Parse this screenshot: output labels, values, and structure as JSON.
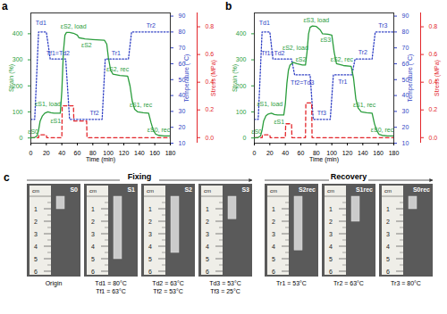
{
  "chart_data": [
    {
      "type": "line",
      "title": "a",
      "xlabel": "Time (min)",
      "ylabel": "Strain (%)",
      "y2label": "Temperature (°C)",
      "y3label": "Stress (MPa)",
      "xlim": [
        0,
        180
      ],
      "xticks": [
        0,
        20,
        40,
        60,
        80,
        100,
        120,
        140,
        160,
        180
      ],
      "ylim": [
        -20,
        480
      ],
      "yticks": [
        0,
        100,
        200,
        300,
        400
      ],
      "y2lim": [
        10,
        92
      ],
      "y2ticks": [
        10,
        20,
        30,
        40,
        50,
        60,
        70,
        80,
        90
      ],
      "y3lim": [
        -0.04,
        0.9
      ],
      "y3ticks": [
        {
          "value": 0,
          "label": "0.0"
        },
        {
          "value": 0.2,
          "label": "0.2"
        },
        {
          "value": 0.4,
          "label": "0.4"
        },
        {
          "value": 0.6,
          "label": "0.6"
        },
        {
          "value": 0.8,
          "label": "0.8"
        }
      ],
      "series": [
        {
          "color": "#2a9d3c",
          "line_style": "solid",
          "x": [
            0,
            5,
            8,
            10,
            12,
            15,
            18,
            22,
            26,
            30,
            38,
            40,
            42,
            44,
            46,
            50,
            55,
            60,
            62,
            70,
            80,
            90,
            95,
            98,
            100,
            103,
            106,
            115,
            125,
            128,
            131,
            134,
            138,
            145,
            152,
            155,
            158,
            161,
            165,
            172,
            180
          ],
          "values": [
            0,
            2,
            8,
            30,
            65,
            85,
            95,
            100,
            97,
            95,
            95,
            180,
            330,
            395,
            405,
            405,
            402,
            395,
            385,
            380,
            378,
            376,
            375,
            360,
            310,
            260,
            245,
            240,
            237,
            200,
            140,
            110,
            100,
            97,
            95,
            60,
            30,
            15,
            10,
            8,
            8
          ]
        },
        {
          "color": "#2f3fc4",
          "line_style": "dotted",
          "axis": "y2",
          "x": [
            0,
            5,
            10,
            20,
            25,
            45,
            50,
            92,
            96,
            126,
            130,
            180
          ],
          "values": [
            25,
            25,
            80,
            80,
            63,
            63,
            25,
            25,
            63,
            63,
            80,
            80
          ]
        },
        {
          "color": "#e3262b",
          "line_style": "dashed",
          "axis": "y3",
          "x": [
            0,
            10,
            10.5,
            20,
            20.5,
            40,
            40.5,
            55,
            55.5,
            72,
            72.5,
            180
          ],
          "values": [
            0,
            0,
            0.02,
            0.02,
            0,
            0,
            0.23,
            0.23,
            0.12,
            0.12,
            0,
            0
          ]
        }
      ],
      "annotations": [
        {
          "text": "εS0",
          "x": 3,
          "y": 25,
          "color": "#2a9d3c"
        },
        {
          "text": "Td1",
          "x": 13,
          "y": 440,
          "color": "#2f3fc4"
        },
        {
          "text": "Tf1=Td2",
          "x": 35,
          "y": 325,
          "color": "#2f3fc4"
        },
        {
          "text": "εS1, load",
          "x": 22,
          "y": 130,
          "color": "#2a9d3c"
        },
        {
          "text": "εS1",
          "x": 32,
          "y": 65,
          "color": "#2a9d3c"
        },
        {
          "text": "εS2, load",
          "x": 55,
          "y": 428,
          "color": "#2a9d3c"
        },
        {
          "text": "εS2",
          "x": 72,
          "y": 355,
          "color": "#2a9d3c"
        },
        {
          "text": "Tf2",
          "x": 82,
          "y": 95,
          "color": "#2f3fc4"
        },
        {
          "text": "Tr1",
          "x": 110,
          "y": 325,
          "color": "#2f3fc4"
        },
        {
          "text": "εS2, rec",
          "x": 112,
          "y": 262,
          "color": "#2a9d3c"
        },
        {
          "text": "Tr2",
          "x": 155,
          "y": 430,
          "color": "#2f3fc4"
        },
        {
          "text": "εS1, rec",
          "x": 142,
          "y": 125,
          "color": "#2a9d3c"
        },
        {
          "text": "εS0, rec",
          "x": 165,
          "y": 30,
          "color": "#2a9d3c"
        }
      ]
    },
    {
      "type": "line",
      "title": "b",
      "xlabel": "Time (min)",
      "ylabel": "Strain (%)",
      "y2label": "Temperature (°C)",
      "y3label": "Stress (MPa)",
      "xlim": [
        0,
        180
      ],
      "xticks": [
        0,
        20,
        40,
        60,
        80,
        100,
        120,
        140,
        160,
        180
      ],
      "ylim": [
        -20,
        480
      ],
      "yticks": [
        0,
        100,
        200,
        300,
        400
      ],
      "y2lim": [
        10,
        92
      ],
      "y2ticks": [
        10,
        20,
        30,
        40,
        50,
        60,
        70,
        80,
        90
      ],
      "y3lim": [
        -0.04,
        0.9
      ],
      "y3ticks": [
        {
          "value": 0,
          "label": "0.0"
        },
        {
          "value": 0.2,
          "label": "0.2"
        },
        {
          "value": 0.4,
          "label": "0.4"
        },
        {
          "value": 0.6,
          "label": "0.6"
        },
        {
          "value": 0.8,
          "label": "0.8"
        }
      ],
      "series": [
        {
          "color": "#2a9d3c",
          "line_style": "solid",
          "x": [
            0,
            5,
            8,
            10,
            12,
            15,
            18,
            22,
            26,
            30,
            38,
            40,
            42,
            44,
            46,
            50,
            55,
            62,
            66,
            68,
            70,
            72,
            75,
            80,
            85,
            88,
            95,
            100,
            103,
            106,
            115,
            125,
            128,
            131,
            134,
            138,
            145,
            152,
            155,
            158,
            161,
            165,
            172,
            180
          ],
          "values": [
            0,
            2,
            8,
            30,
            65,
            85,
            92,
            95,
            90,
            88,
            88,
            130,
            210,
            260,
            280,
            290,
            285,
            280,
            280,
            330,
            400,
            425,
            430,
            428,
            415,
            400,
            398,
            395,
            330,
            285,
            278,
            275,
            230,
            150,
            115,
            100,
            97,
            95,
            55,
            28,
            14,
            10,
            8,
            8
          ]
        },
        {
          "color": "#2f3fc4",
          "line_style": "dotted",
          "axis": "y2",
          "x": [
            0,
            5,
            10,
            20,
            24,
            48,
            52,
            72,
            76,
            98,
            102,
            126,
            130,
            152,
            156,
            180
          ],
          "values": [
            25,
            25,
            80,
            80,
            63,
            63,
            53,
            53,
            25,
            25,
            53,
            53,
            63,
            63,
            80,
            80
          ]
        },
        {
          "color": "#e3262b",
          "line_style": "dashed",
          "axis": "y3",
          "x": [
            0,
            10,
            10.5,
            20,
            20.5,
            40,
            40.5,
            48,
            48.5,
            66,
            66.5,
            74,
            74.5,
            180
          ],
          "values": [
            0,
            0,
            0.02,
            0.02,
            0,
            0,
            0.1,
            0.1,
            0,
            0,
            0.25,
            0.25,
            0,
            0
          ]
        }
      ],
      "annotations": [
        {
          "text": "εS0",
          "x": 3,
          "y": 25,
          "color": "#2a9d3c"
        },
        {
          "text": "Td1",
          "x": 13,
          "y": 440,
          "color": "#2f3fc4"
        },
        {
          "text": "Tf1=Td2",
          "x": 24,
          "y": 325,
          "color": "#2f3fc4"
        },
        {
          "text": "εS1, load",
          "x": 20,
          "y": 130,
          "color": "#2a9d3c"
        },
        {
          "text": "εS1",
          "x": 32,
          "y": 62,
          "color": "#2a9d3c"
        },
        {
          "text": "εS2, load",
          "x": 53,
          "y": 345,
          "color": "#2a9d3c"
        },
        {
          "text": "εS2",
          "x": 60,
          "y": 300,
          "color": "#2a9d3c"
        },
        {
          "text": "Tf2=Td3",
          "x": 62,
          "y": 212,
          "color": "#2f3fc4"
        },
        {
          "text": "εS3, load",
          "x": 80,
          "y": 452,
          "color": "#2a9d3c"
        },
        {
          "text": "εS3",
          "x": 92,
          "y": 375,
          "color": "#2a9d3c"
        },
        {
          "text": "Tf3",
          "x": 87,
          "y": 95,
          "color": "#2f3fc4"
        },
        {
          "text": "Tr1",
          "x": 114,
          "y": 215,
          "color": "#2f3fc4"
        },
        {
          "text": "εS2, rec",
          "x": 113,
          "y": 300,
          "color": "#2a9d3c"
        },
        {
          "text": "Tr2",
          "x": 140,
          "y": 330,
          "color": "#2f3fc4"
        },
        {
          "text": "εS1, rec",
          "x": 142,
          "y": 125,
          "color": "#2a9d3c"
        },
        {
          "text": "Tr3",
          "x": 166,
          "y": 430,
          "color": "#2f3fc4"
        },
        {
          "text": "εS0, rec",
          "x": 165,
          "y": 30,
          "color": "#2a9d3c"
        }
      ]
    }
  ],
  "panel_c": {
    "title": "c",
    "ruler": {
      "unit": "cm",
      "ticks": [
        1,
        2,
        3,
        4,
        5,
        6
      ]
    },
    "fixing": {
      "label": "Fixing",
      "samples": [
        {
          "label": "S0",
          "conditions": [
            "Origin"
          ],
          "length_cm": 1.0
        },
        {
          "label": "S1",
          "conditions": [
            "Td1 = 80°C",
            "Tf1 = 63°C"
          ],
          "length_cm": 5.0
        },
        {
          "label": "S2",
          "conditions": [
            "Td2 = 63°C",
            "Tf2 = 53°C"
          ],
          "length_cm": 4.5
        },
        {
          "label": "S3",
          "conditions": [
            "Td3 = 53°C",
            "Tf3 = 25°C"
          ],
          "length_cm": 1.8
        }
      ]
    },
    "recovery": {
      "label": "Recovery",
      "samples": [
        {
          "label": "S2rec",
          "conditions": [
            "Tr1 = 53°C"
          ],
          "length_cm": 4.3
        },
        {
          "label": "S1rec",
          "conditions": [
            "Tr2 = 63°C"
          ],
          "length_cm": 2.0
        },
        {
          "label": "S0rec",
          "conditions": [
            "Tr3 = 80°C"
          ],
          "length_cm": 1.0
        }
      ]
    }
  }
}
